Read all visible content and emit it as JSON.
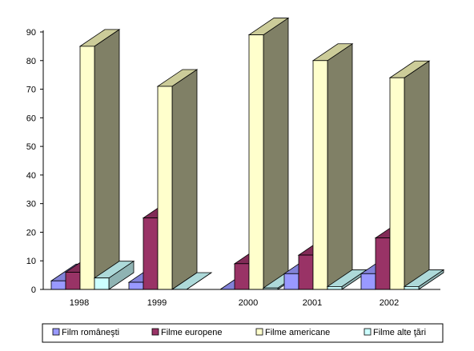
{
  "chart_data": {
    "type": "bar",
    "subtype": "3d-clustered-column",
    "categories": [
      "1998",
      "1999",
      "2000",
      "2001",
      "2002"
    ],
    "series": [
      {
        "name": "Film româneşti",
        "values": [
          3,
          2.5,
          0,
          5.5,
          5.5
        ],
        "color": "#9999FF"
      },
      {
        "name": "Filme europene",
        "values": [
          6,
          25,
          9,
          12,
          18
        ],
        "color": "#993366"
      },
      {
        "name": "Filme americane",
        "values": [
          85,
          71,
          89,
          80,
          74
        ],
        "color": "#FFFFCC"
      },
      {
        "name": "Filme alte ţări",
        "values": [
          4,
          0,
          0.5,
          1,
          1
        ],
        "color": "#CCFFFF"
      }
    ],
    "ylim": [
      0,
      90
    ],
    "yticks": [
      0,
      10,
      20,
      30,
      40,
      50,
      60,
      70,
      80,
      90
    ],
    "grid": false,
    "legend_position": "bottom",
    "side_color": "#808066",
    "top_color": "#CCCC99"
  }
}
